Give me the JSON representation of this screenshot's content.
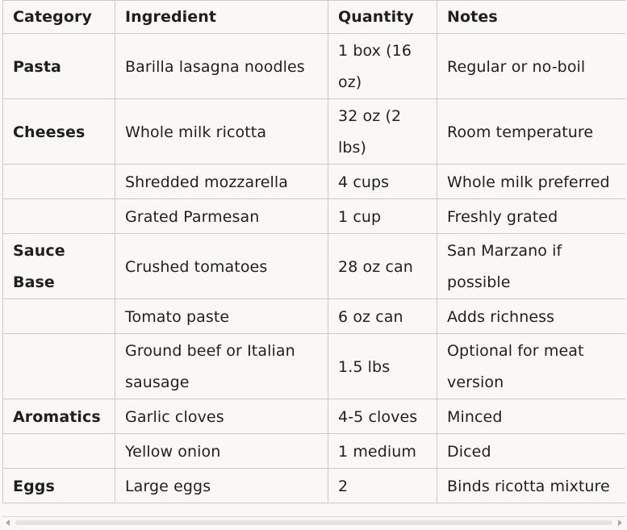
{
  "table": {
    "headers": [
      "Category",
      "Ingredient",
      "Quantity",
      "Notes"
    ],
    "rows": [
      {
        "category": "Pasta",
        "ingredient": "Barilla lasagna noodles",
        "quantity": "1 box (16 oz)",
        "notes": "Regular or no-boil"
      },
      {
        "category": "Cheeses",
        "ingredient": "Whole milk ricotta",
        "quantity": "32 oz (2 lbs)",
        "notes": "Room temperature"
      },
      {
        "category": "",
        "ingredient": "Shredded mozzarella",
        "quantity": "4 cups",
        "notes": "Whole milk preferred"
      },
      {
        "category": "",
        "ingredient": "Grated Parmesan",
        "quantity": "1 cup",
        "notes": "Freshly grated"
      },
      {
        "category": "Sauce Base",
        "ingredient": "Crushed tomatoes",
        "quantity": "28 oz can",
        "notes": "San Marzano if possible"
      },
      {
        "category": "",
        "ingredient": "Tomato paste",
        "quantity": "6 oz can",
        "notes": "Adds richness"
      },
      {
        "category": "",
        "ingredient": "Ground beef or Italian sausage",
        "quantity": "1.5 lbs",
        "notes": "Optional for meat version"
      },
      {
        "category": "Aromatics",
        "ingredient": "Garlic cloves",
        "quantity": "4-5 cloves",
        "notes": "Minced"
      },
      {
        "category": "",
        "ingredient": "Yellow onion",
        "quantity": "1 medium",
        "notes": "Diced"
      },
      {
        "category": "Eggs",
        "ingredient": "Large eggs",
        "quantity": "2",
        "notes": "Binds ricotta mixture"
      }
    ]
  },
  "icons": {
    "scroll_left": "scroll-left-arrow-icon",
    "scroll_right": "scroll-right-arrow-icon"
  },
  "colors": {
    "background": "#f9f8f4",
    "border": "#c9c9c6",
    "text": "#1f1f1f"
  }
}
